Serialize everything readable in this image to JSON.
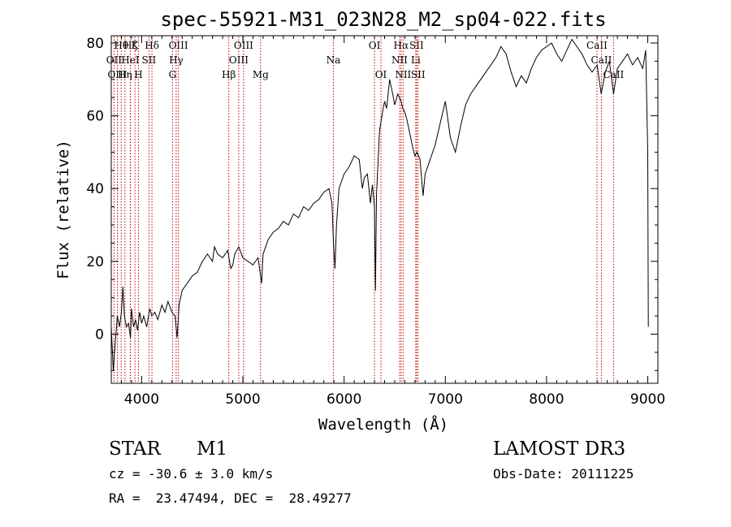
{
  "chart_data": {
    "type": "line",
    "title": "spec-55921-M31_023N28_M2_sp04-022.fits",
    "xlabel": "Wavelength (Å)",
    "ylabel": "Flux (relative)",
    "xlim": [
      3700,
      9100
    ],
    "ylim": [
      -13.5,
      82
    ],
    "x_ticks": [
      4000,
      5000,
      6000,
      7000,
      8000,
      9000
    ],
    "y_ticks": [
      0,
      20,
      40,
      60,
      80
    ],
    "line_color": "#000000",
    "marker_color": "#c00000",
    "series": [
      {
        "name": "spectrum",
        "points": [
          [
            3700,
            2
          ],
          [
            3720,
            -10
          ],
          [
            3740,
            -2
          ],
          [
            3760,
            5
          ],
          [
            3780,
            2
          ],
          [
            3800,
            6
          ],
          [
            3815,
            13
          ],
          [
            3830,
            5
          ],
          [
            3850,
            2
          ],
          [
            3870,
            3
          ],
          [
            3890,
            -1
          ],
          [
            3900,
            7
          ],
          [
            3920,
            2
          ],
          [
            3940,
            4
          ],
          [
            3960,
            1
          ],
          [
            3980,
            6
          ],
          [
            4000,
            3
          ],
          [
            4020,
            5
          ],
          [
            4050,
            2
          ],
          [
            4080,
            7
          ],
          [
            4100,
            5
          ],
          [
            4130,
            6
          ],
          [
            4160,
            4
          ],
          [
            4200,
            8
          ],
          [
            4230,
            6
          ],
          [
            4260,
            9
          ],
          [
            4300,
            6
          ],
          [
            4330,
            5
          ],
          [
            4350,
            -1
          ],
          [
            4370,
            8
          ],
          [
            4400,
            12
          ],
          [
            4450,
            14
          ],
          [
            4500,
            16
          ],
          [
            4550,
            17
          ],
          [
            4600,
            20
          ],
          [
            4650,
            22
          ],
          [
            4700,
            20
          ],
          [
            4720,
            24
          ],
          [
            4750,
            22
          ],
          [
            4800,
            21
          ],
          [
            4850,
            23
          ],
          [
            4880,
            18
          ],
          [
            4900,
            19
          ],
          [
            4920,
            22
          ],
          [
            4960,
            24
          ],
          [
            5000,
            21
          ],
          [
            5050,
            20
          ],
          [
            5100,
            19
          ],
          [
            5150,
            21
          ],
          [
            5170,
            17
          ],
          [
            5185,
            14
          ],
          [
            5200,
            22
          ],
          [
            5250,
            26
          ],
          [
            5300,
            28
          ],
          [
            5350,
            29
          ],
          [
            5400,
            31
          ],
          [
            5450,
            30
          ],
          [
            5500,
            33
          ],
          [
            5550,
            32
          ],
          [
            5600,
            35
          ],
          [
            5650,
            34
          ],
          [
            5700,
            36
          ],
          [
            5750,
            37
          ],
          [
            5800,
            39
          ],
          [
            5850,
            40
          ],
          [
            5880,
            36
          ],
          [
            5895,
            25
          ],
          [
            5910,
            18
          ],
          [
            5925,
            30
          ],
          [
            5950,
            40
          ],
          [
            6000,
            44
          ],
          [
            6050,
            46
          ],
          [
            6100,
            49
          ],
          [
            6150,
            48
          ],
          [
            6180,
            40
          ],
          [
            6200,
            43
          ],
          [
            6230,
            44
          ],
          [
            6260,
            36
          ],
          [
            6280,
            41
          ],
          [
            6300,
            35
          ],
          [
            6310,
            12
          ],
          [
            6320,
            38
          ],
          [
            6350,
            56
          ],
          [
            6380,
            61
          ],
          [
            6400,
            64
          ],
          [
            6420,
            62
          ],
          [
            6450,
            70
          ],
          [
            6480,
            66
          ],
          [
            6500,
            63
          ],
          [
            6530,
            66
          ],
          [
            6563,
            64
          ],
          [
            6580,
            62
          ],
          [
            6600,
            61
          ],
          [
            6620,
            59
          ],
          [
            6650,
            55
          ],
          [
            6680,
            51
          ],
          [
            6700,
            49
          ],
          [
            6720,
            50
          ],
          [
            6750,
            48
          ],
          [
            6780,
            38
          ],
          [
            6800,
            44
          ],
          [
            6850,
            48
          ],
          [
            6900,
            52
          ],
          [
            6950,
            58
          ],
          [
            7000,
            64
          ],
          [
            7050,
            54
          ],
          [
            7100,
            50
          ],
          [
            7150,
            57
          ],
          [
            7200,
            63
          ],
          [
            7250,
            66
          ],
          [
            7300,
            68
          ],
          [
            7350,
            70
          ],
          [
            7400,
            72
          ],
          [
            7450,
            74
          ],
          [
            7500,
            76
          ],
          [
            7550,
            79
          ],
          [
            7600,
            77
          ],
          [
            7650,
            72
          ],
          [
            7700,
            68
          ],
          [
            7750,
            71
          ],
          [
            7800,
            69
          ],
          [
            7850,
            73
          ],
          [
            7900,
            76
          ],
          [
            7950,
            78
          ],
          [
            8000,
            79
          ],
          [
            8050,
            80
          ],
          [
            8100,
            77
          ],
          [
            8150,
            75
          ],
          [
            8200,
            78
          ],
          [
            8250,
            81
          ],
          [
            8300,
            79
          ],
          [
            8350,
            77
          ],
          [
            8400,
            74
          ],
          [
            8450,
            72
          ],
          [
            8500,
            74
          ],
          [
            8540,
            66
          ],
          [
            8580,
            72
          ],
          [
            8620,
            75
          ],
          [
            8662,
            66
          ],
          [
            8700,
            73
          ],
          [
            8750,
            75
          ],
          [
            8800,
            77
          ],
          [
            8850,
            74
          ],
          [
            8900,
            76
          ],
          [
            8950,
            73
          ],
          [
            8980,
            78
          ],
          [
            9000,
            50
          ],
          [
            9005,
            2
          ]
        ]
      }
    ],
    "lines": [
      {
        "label": "Hθ",
        "x": 3798,
        "row": 0
      },
      {
        "label": "OII",
        "x": 3727,
        "row": 1
      },
      {
        "label": "OIII",
        "x": 3760,
        "row": 2
      },
      {
        "label": "Hη",
        "x": 3835,
        "row": 2
      },
      {
        "label": "Hζ",
        "x": 3889,
        "row": 0
      },
      {
        "label": "HeI",
        "x": 3888,
        "row": 1
      },
      {
        "label": "K",
        "x": 3934,
        "row": 0
      },
      {
        "label": "H",
        "x": 3969,
        "row": 2
      },
      {
        "label": "SII",
        "x": 4072,
        "row": 1
      },
      {
        "label": "Hδ",
        "x": 4102,
        "row": 0
      },
      {
        "label": "OIII",
        "x": 4363,
        "row": 0
      },
      {
        "label": "Hγ",
        "x": 4341,
        "row": 1
      },
      {
        "label": "G",
        "x": 4305,
        "row": 2
      },
      {
        "label": "Hβ",
        "x": 4861,
        "row": 2
      },
      {
        "label": "OIII",
        "x": 5007,
        "row": 0
      },
      {
        "label": "OIII",
        "x": 4959,
        "row": 1
      },
      {
        "label": "Mg",
        "x": 5175,
        "row": 2
      },
      {
        "label": "Na",
        "x": 5894,
        "row": 1
      },
      {
        "label": "OI",
        "x": 6300,
        "row": 0
      },
      {
        "label": "OI",
        "x": 6364,
        "row": 2
      },
      {
        "label": "Hα",
        "x": 6563,
        "row": 0
      },
      {
        "label": "NII",
        "x": 6548,
        "row": 1
      },
      {
        "label": "NII",
        "x": 6583,
        "row": 2
      },
      {
        "label": "SII",
        "x": 6716,
        "row": 0
      },
      {
        "label": "Li",
        "x": 6708,
        "row": 1
      },
      {
        "label": "SII",
        "x": 6731,
        "row": 2
      },
      {
        "label": "CaII",
        "x": 8498,
        "row": 0
      },
      {
        "label": "CaII",
        "x": 8542,
        "row": 1
      },
      {
        "label": "CaII",
        "x": 8662,
        "row": 2
      }
    ]
  },
  "info": {
    "object_class": "STAR",
    "subclass": "M1",
    "survey": "LAMOST DR3",
    "cz": "cz = -30.6 ± 3.0 km/s",
    "obs_date": "Obs-Date: 20111225",
    "radec": "RA =  23.47494, DEC =  28.49277"
  }
}
